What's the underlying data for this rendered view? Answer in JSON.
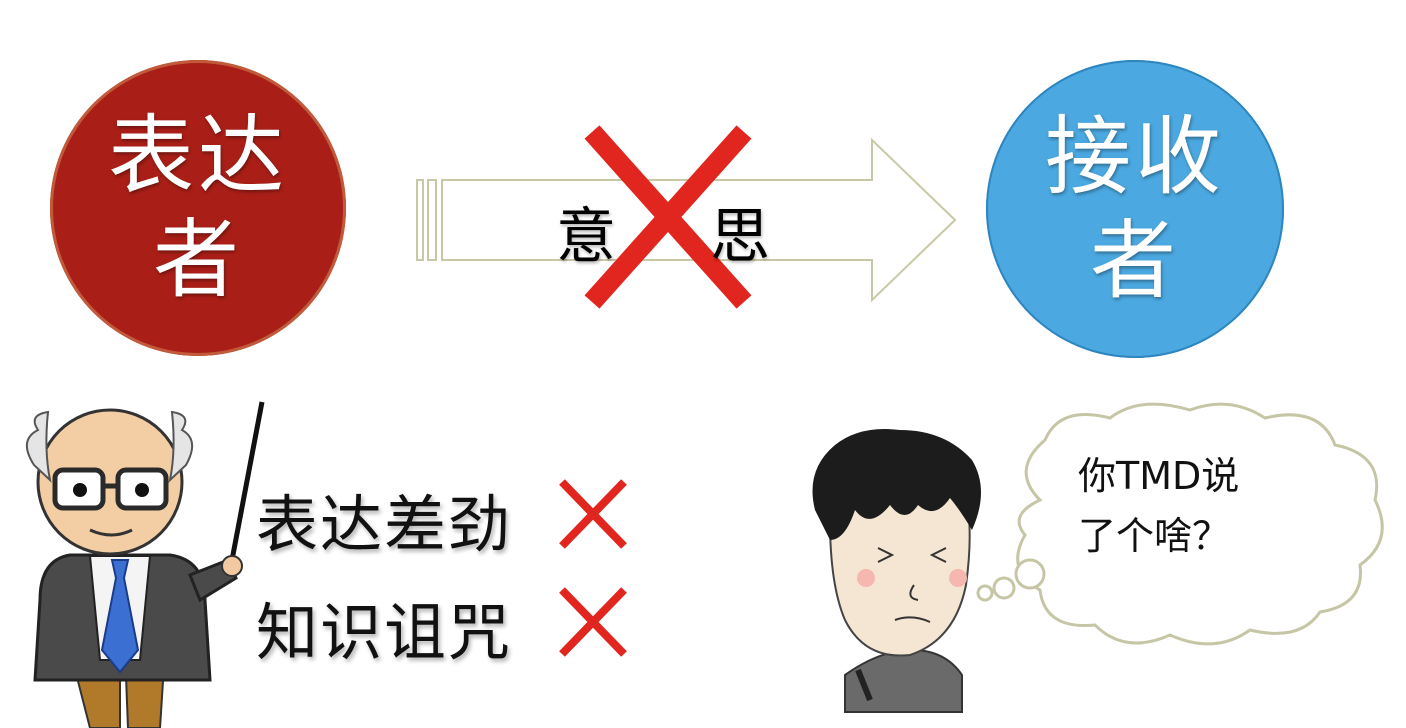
{
  "sender": {
    "line1": "表达",
    "line2": "者",
    "color": "#a91f17"
  },
  "receiver": {
    "line1": "接收",
    "line2": "者",
    "color": "#4ba8e0"
  },
  "arrow": {
    "left_char": "意",
    "right_char": "思"
  },
  "issues": [
    {
      "label": "表达差劲",
      "icon": "cross-icon"
    },
    {
      "label": "知识诅咒",
      "icon": "cross-icon"
    }
  ],
  "thought_bubble": {
    "line1": "你TMD说",
    "line2": "了个啥？"
  },
  "colors": {
    "cross": "#e0261e",
    "arrow_outline": "#c9c8a6"
  }
}
